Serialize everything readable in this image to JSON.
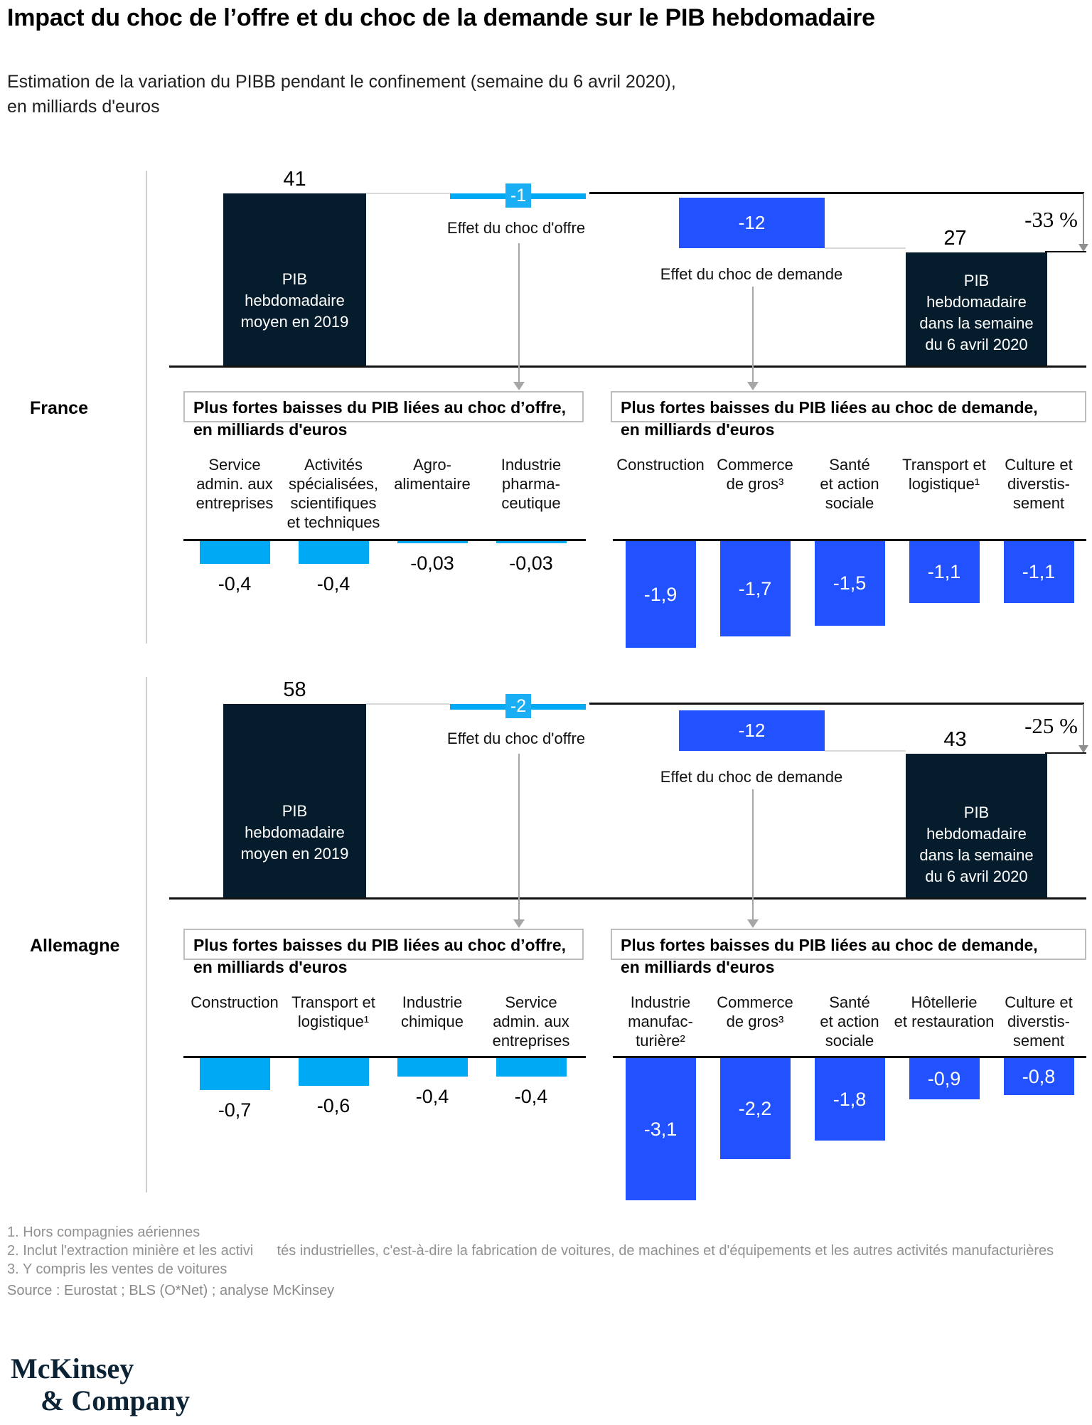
{
  "header": {
    "title": "Impact du choc de l’offre et du choc de la demande sur le PIB hebdomadaire",
    "subtitle_line1": "Estimation de la variation du PIBB pendant le confinement (semaine du 6 avril 2020),",
    "subtitle_line2": "en milliards d'euros"
  },
  "colors": {
    "navy": "#051c2c",
    "cyan": "#00a9f4",
    "blue": "#2251ff",
    "gray_line": "#d9d9d9",
    "arrow_gray": "#a6a6a6",
    "footnote_gray": "#919191"
  },
  "chart_data": [
    {
      "country": "France",
      "type": "bar",
      "waterfall": {
        "values": [
          41,
          -1,
          -12,
          27
        ],
        "display": [
          "41",
          "-1",
          "-12",
          "27"
        ],
        "start_bar_label": "PIB\nhebdomadaire\nmoyen en 2019",
        "end_bar_label": "PIB\nhebdomadaire\ndans la semaine\ndu 6 avril 2020",
        "supply_effect_label": "Effet du choc d'offre",
        "demand_effect_label": "Effet du choc de demande",
        "pct_change": "-33 %"
      },
      "supply": {
        "title": "Plus fortes baisses du PIB liées au choc d’offre,",
        "subtitle": "en milliards d'euros",
        "categories": [
          "Service\nadmin. aux\nentreprises",
          "Activités\nspécialisées,\nscientifiques\net techniques",
          "Agro-\nalimentaire",
          "Industrie\npharma-\nceutique"
        ],
        "values": [
          -0.4,
          -0.4,
          -0.03,
          -0.03
        ],
        "display": [
          "-0,4",
          "-0,4",
          "-0,03",
          "-0,03"
        ]
      },
      "demand": {
        "title": "Plus fortes baisses du PIB liées au choc de demande,",
        "subtitle": "en milliards d'euros",
        "categories": [
          "Construction",
          "Commerce\nde gros³",
          "Santé\net action\nsociale",
          "Transport et\nlogistique¹",
          "Culture et\ndiverstis-\nsement"
        ],
        "values": [
          -1.9,
          -1.7,
          -1.5,
          -1.1,
          -1.1
        ],
        "display": [
          "-1,9",
          "-1,7",
          "-1,5",
          "-1,1",
          "-1,1"
        ]
      }
    },
    {
      "country": "Allemagne",
      "type": "bar",
      "waterfall": {
        "values": [
          58,
          -2,
          -12,
          43
        ],
        "display": [
          "58",
          "-2",
          "-12",
          "43"
        ],
        "start_bar_label": "PIB\nhebdomadaire\nmoyen en 2019",
        "end_bar_label": "PIB\nhebdomadaire\ndans la semaine\ndu 6 avril 2020",
        "supply_effect_label": "Effet du choc d'offre",
        "demand_effect_label": "Effet du choc de demande",
        "pct_change": "-25 %"
      },
      "supply": {
        "title": "Plus fortes baisses du PIB liées au choc d’offre,",
        "subtitle": "en milliards d'euros",
        "categories": [
          "Construction",
          "Transport et\nlogistique¹",
          "Industrie\nchimique",
          "Service\nadmin. aux\nentreprises"
        ],
        "values": [
          -0.7,
          -0.6,
          -0.4,
          -0.4
        ],
        "display": [
          "-0,7",
          "-0,6",
          "-0,4",
          "-0,4"
        ]
      },
      "demand": {
        "title": "Plus fortes baisses du PIB liées au choc de demande,",
        "subtitle": "en milliards d'euros",
        "categories": [
          "Industrie\nmanufac-\nturière²",
          "Commerce\nde gros³",
          "Santé\net action\nsociale",
          "Hôtellerie\net restauration",
          "Culture et\ndiverstis-\nsement"
        ],
        "values": [
          -3.1,
          -2.2,
          -1.8,
          -0.9,
          -0.8
        ],
        "display": [
          "-3,1",
          "-2,2",
          "-1,8",
          "-0,9",
          "-0,8"
        ]
      }
    }
  ],
  "footnotes": [
    "1. Hors compagnies aériennes",
    "2. Inclut l'extraction minière et les activi      tés industrielles, c'est-à-dire la fabrication de voitures, de machines et d'équipements et les autres activités manufacturières",
    "3. Y compris les ventes de voitures"
  ],
  "source": "Source : Eurostat ; BLS (O*Net) ; analyse McKinsey",
  "logo": {
    "line1": "McKinsey",
    "line2": "& Company"
  }
}
